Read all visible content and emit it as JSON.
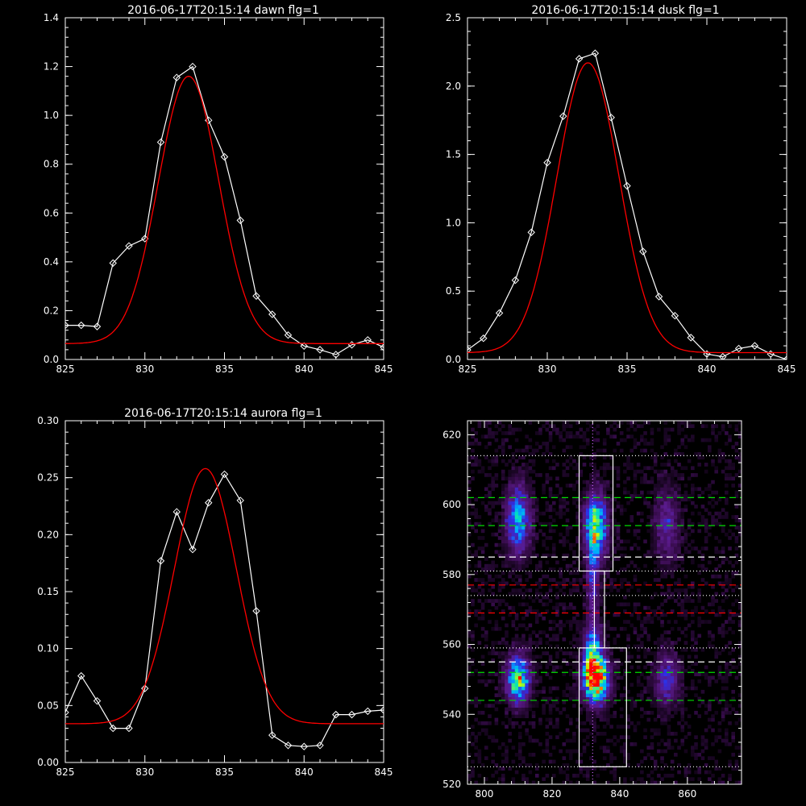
{
  "chart_data": [
    {
      "type": "line",
      "title": "2016-06-17T20:15:14 dawn flg=1",
      "xlim": [
        825,
        845
      ],
      "ylim": [
        0,
        1.4
      ],
      "xticks": [
        825,
        830,
        835,
        840,
        845
      ],
      "yticks": [
        0.0,
        0.2,
        0.4,
        0.6,
        0.8,
        1.0,
        1.2,
        1.4
      ],
      "ytick_labels": [
        "0.0",
        "0.2",
        "0.4",
        "0.6",
        "0.8",
        "1.0",
        "1.2",
        "1.4"
      ],
      "series": [
        {
          "style": "line+diamond",
          "color": "#ffffff",
          "x": [
            825,
            826,
            827,
            828,
            829,
            830,
            831,
            832,
            833,
            834,
            835,
            836,
            837,
            838,
            839,
            840,
            841,
            842,
            843,
            844,
            845
          ],
          "y": [
            0.14,
            0.14,
            0.135,
            0.395,
            0.465,
            0.495,
            0.89,
            1.155,
            1.2,
            0.98,
            0.83,
            0.57,
            0.26,
            0.185,
            0.1,
            0.055,
            0.04,
            0.02,
            0.06,
            0.08,
            0.05
          ]
        },
        {
          "style": "line",
          "color": "#ff0000",
          "fit": {
            "amplitude": 1.095,
            "center": 832.75,
            "sigma": 1.9,
            "baseline": 0.065
          }
        }
      ]
    },
    {
      "type": "line",
      "title": "2016-06-17T20:15:14 dusk flg=1",
      "xlim": [
        825,
        845
      ],
      "ylim": [
        0,
        2.5
      ],
      "xticks": [
        825,
        830,
        835,
        840,
        845
      ],
      "yticks": [
        0.0,
        0.5,
        1.0,
        1.5,
        2.0,
        2.5
      ],
      "ytick_labels": [
        "0.0",
        "0.5",
        "1.0",
        "1.5",
        "2.0",
        "2.5"
      ],
      "series": [
        {
          "style": "line+diamond",
          "color": "#ffffff",
          "x": [
            825,
            826,
            827,
            828,
            829,
            830,
            831,
            832,
            833,
            834,
            835,
            836,
            837,
            838,
            839,
            840,
            841,
            842,
            843,
            844,
            845
          ],
          "y": [
            0.07,
            0.155,
            0.34,
            0.58,
            0.93,
            1.44,
            1.78,
            2.2,
            2.24,
            1.77,
            1.27,
            0.79,
            0.46,
            0.32,
            0.16,
            0.04,
            0.02,
            0.08,
            0.1,
            0.04,
            0.0
          ]
        },
        {
          "style": "line",
          "color": "#ff0000",
          "fit": {
            "amplitude": 2.12,
            "center": 832.55,
            "sigma": 1.95,
            "baseline": 0.05
          }
        }
      ]
    },
    {
      "type": "line",
      "title": "2016-06-17T20:15:14 aurora flg=1",
      "xlim": [
        825,
        845
      ],
      "ylim": [
        0,
        0.3
      ],
      "xticks": [
        825,
        830,
        835,
        840,
        845
      ],
      "yticks": [
        0.0,
        0.05,
        0.1,
        0.15,
        0.2,
        0.25,
        0.3
      ],
      "ytick_labels": [
        "0.00",
        "0.05",
        "0.10",
        "0.15",
        "0.20",
        "0.25",
        "0.30"
      ],
      "series": [
        {
          "style": "line+diamond",
          "color": "#ffffff",
          "x": [
            825,
            826,
            827,
            828,
            829,
            830,
            831,
            832,
            833,
            834,
            835,
            836,
            837,
            838,
            839,
            840,
            841,
            842,
            843,
            844,
            845
          ],
          "y": [
            0.044,
            0.076,
            0.054,
            0.03,
            0.03,
            0.065,
            0.177,
            0.22,
            0.187,
            0.228,
            0.253,
            0.23,
            0.133,
            0.024,
            0.015,
            0.014,
            0.015,
            0.042,
            0.042,
            0.045,
            0.046
          ]
        },
        {
          "style": "line",
          "color": "#ff0000",
          "fit": {
            "amplitude": 0.224,
            "center": 833.8,
            "sigma": 1.95,
            "baseline": 0.034
          }
        }
      ]
    },
    {
      "type": "heatmap",
      "title": "",
      "xlim": [
        795,
        876
      ],
      "ylim": [
        520,
        624
      ],
      "xticks": [
        800,
        820,
        840,
        860
      ],
      "yticks": [
        520,
        540,
        560,
        580,
        600,
        620
      ],
      "ytick_labels": [
        "520",
        "540",
        "560",
        "580",
        "600",
        "620"
      ],
      "colormap": [
        "#000000",
        "#3a0d50",
        "#5a1a8a",
        "#2e2ee6",
        "#00aaff",
        "#00e0c0",
        "#c8ff00",
        "#ff6000",
        "#ff0000"
      ],
      "blobs": [
        {
          "cx": 833,
          "cy": 550,
          "sx": 2.4,
          "sy": 4.2,
          "amp": 1.0
        },
        {
          "cx": 832,
          "cy": 558,
          "sx": 1.8,
          "sy": 5.0,
          "amp": 0.55
        },
        {
          "cx": 833,
          "cy": 594,
          "sx": 2.2,
          "sy": 6.0,
          "amp": 0.68
        },
        {
          "cx": 832,
          "cy": 579,
          "sx": 1.2,
          "sy": 8.0,
          "amp": 0.3
        },
        {
          "cx": 810,
          "cy": 550,
          "sx": 2.2,
          "sy": 4.5,
          "amp": 0.72
        },
        {
          "cx": 810,
          "cy": 596,
          "sx": 2.4,
          "sy": 6.5,
          "amp": 0.5
        },
        {
          "cx": 854,
          "cy": 550,
          "sx": 2.5,
          "sy": 5.0,
          "amp": 0.3
        },
        {
          "cx": 854,
          "cy": 594,
          "sx": 2.5,
          "sy": 7.0,
          "amp": 0.25
        }
      ],
      "boxes": [
        {
          "x0": 828,
          "x1": 838,
          "y0": 581,
          "y1": 614
        },
        {
          "x0": 828,
          "x1": 842,
          "y0": 525,
          "y1": 559
        },
        {
          "x0": 832.5,
          "x1": 835.5,
          "y0": 559,
          "y1": 581
        }
      ],
      "vline": {
        "x": 832,
        "color": "#cc66ff",
        "style": "dotted"
      },
      "hlines": [
        {
          "y": 614,
          "color": "#ffffff",
          "style": "dotted"
        },
        {
          "y": 602,
          "color": "#00dd00",
          "style": "dashed"
        },
        {
          "y": 594,
          "color": "#00dd00",
          "style": "dashed"
        },
        {
          "y": 585,
          "color": "#ffffff",
          "style": "dashed"
        },
        {
          "y": 581,
          "color": "#ffffff",
          "style": "dotted"
        },
        {
          "y": 577,
          "color": "#ff0000",
          "style": "dashed"
        },
        {
          "y": 574,
          "color": "#ffffff",
          "style": "dotted"
        },
        {
          "y": 569,
          "color": "#ff0000",
          "style": "dashed"
        },
        {
          "y": 559,
          "color": "#ffffff",
          "style": "dotted"
        },
        {
          "y": 555,
          "color": "#ffffff",
          "style": "dashed"
        },
        {
          "y": 552,
          "color": "#00dd00",
          "style": "dashed"
        },
        {
          "y": 544,
          "color": "#00dd00",
          "style": "dashed"
        },
        {
          "y": 525,
          "color": "#ffffff",
          "style": "dotted"
        }
      ]
    }
  ]
}
